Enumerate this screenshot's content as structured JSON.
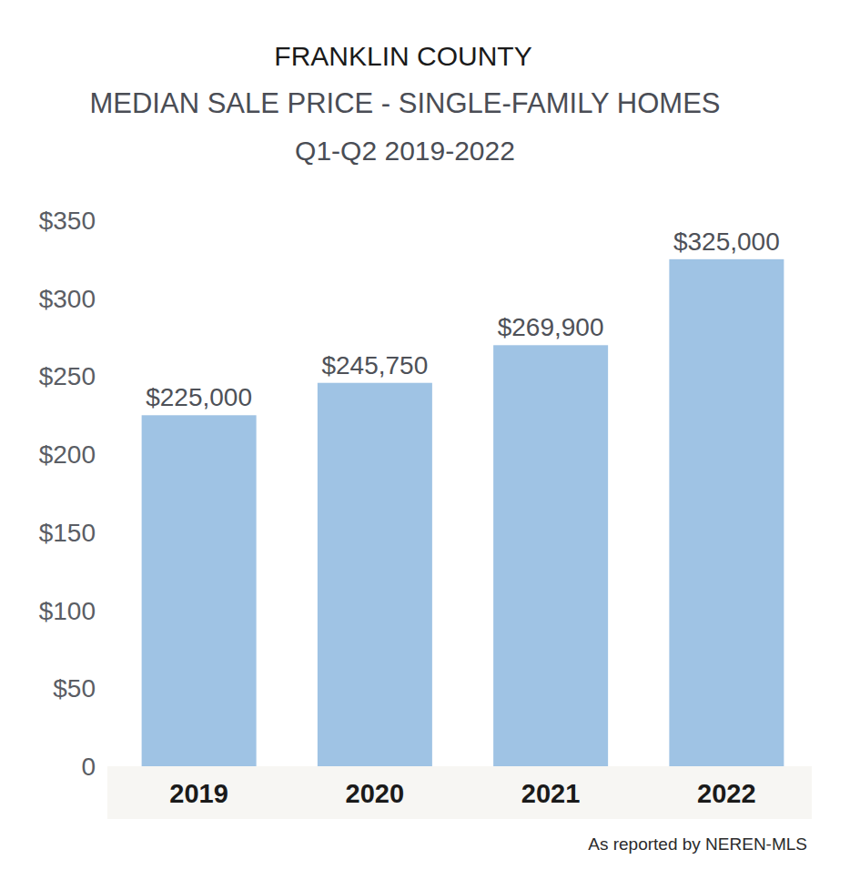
{
  "chart_data": {
    "type": "bar",
    "title": "FRANKLIN COUNTY",
    "subtitle": [
      "MEDIAN SALE PRICE - SINGLE-FAMILY HOMES",
      "Q1-Q2 2019-2022"
    ],
    "annotations": [
      "As reported by NEREN-MLS"
    ],
    "categories": [
      "2019",
      "2020",
      "2021",
      "2022"
    ],
    "values": [
      225,
      245.75,
      269.9,
      325
    ],
    "value_labels": [
      "$225,000",
      "$245,750",
      "$269,900",
      "$325,000"
    ],
    "color": "#9fc3e4",
    "ylim": [
      0,
      350
    ],
    "yticks": [
      {
        "value": 0,
        "label": "0"
      },
      {
        "value": 50,
        "label": "$50"
      },
      {
        "value": 100,
        "label": "$100"
      },
      {
        "value": 150,
        "label": "$150"
      },
      {
        "value": 200,
        "label": "$200"
      },
      {
        "value": 250,
        "label": "$250"
      },
      {
        "value": 300,
        "label": "$300"
      },
      {
        "value": 350,
        "label": "$350"
      }
    ],
    "grid": false,
    "data_labels": true
  }
}
